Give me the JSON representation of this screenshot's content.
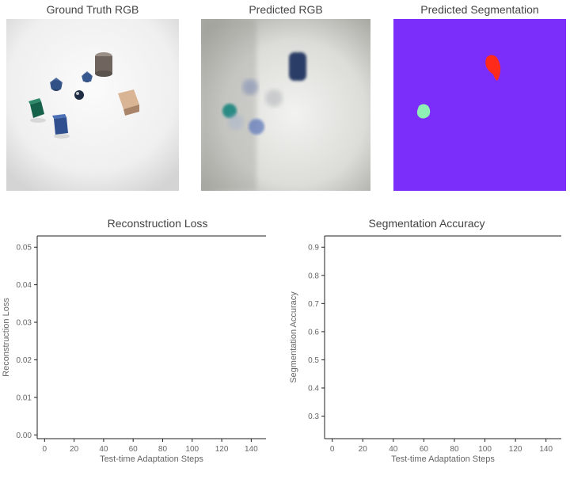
{
  "panels": [
    {
      "title": "Ground Truth RGB"
    },
    {
      "title": "Predicted RGB"
    },
    {
      "title": "Predicted Segmentation"
    }
  ],
  "colors": {
    "segmentation_background": "#7b2dfa",
    "segment_red": "#ff2a1a",
    "segment_mint": "#8ff0b6"
  },
  "chart_data": [
    {
      "type": "line",
      "title": "Reconstruction Loss",
      "xlabel": "Test-time Adaptation Steps",
      "ylabel": "Reconstruction Loss",
      "xticks": [
        0,
        20,
        40,
        60,
        80,
        100,
        120,
        140
      ],
      "yticks": [
        0.0,
        0.01,
        0.02,
        0.03,
        0.04,
        0.05
      ],
      "ytick_labels": [
        "0.00",
        "0.01",
        "0.02",
        "0.03",
        "0.04",
        "0.05"
      ],
      "xlim": [
        -5,
        150
      ],
      "ylim": [
        -0.001,
        0.053
      ],
      "grid": false,
      "series": []
    },
    {
      "type": "line",
      "title": "Segmentation Accuracy",
      "xlabel": "Test-time Adaptation Steps",
      "ylabel": "Segmentation Accuracy",
      "xticks": [
        0,
        20,
        40,
        60,
        80,
        100,
        120,
        140
      ],
      "yticks": [
        0.3,
        0.4,
        0.5,
        0.6,
        0.7,
        0.8,
        0.9
      ],
      "ytick_labels": [
        "0.3",
        "0.4",
        "0.5",
        "0.6",
        "0.7",
        "0.8",
        "0.9"
      ],
      "xlim": [
        -5,
        150
      ],
      "ylim": [
        0.22,
        0.94
      ],
      "grid": false,
      "series": []
    }
  ]
}
